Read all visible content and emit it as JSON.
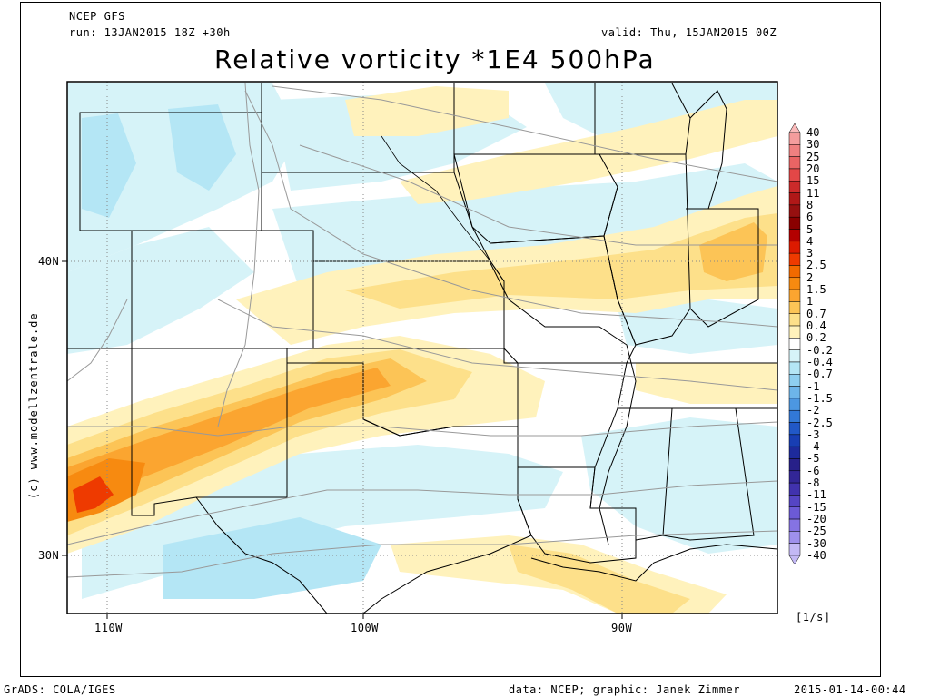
{
  "header": {
    "model": "NCEP GFS",
    "run": "run: 13JAN2015 18Z +30h",
    "valid": "valid: Thu, 15JAN2015 00Z",
    "title": "Relative vorticity *1E4 500hPa"
  },
  "axes": {
    "lat_labels": [
      "40N",
      "30N"
    ],
    "lon_labels": [
      "110W",
      "100W",
      "90W"
    ]
  },
  "colorbar": {
    "labels": [
      "40",
      "30",
      "25",
      "20",
      "15",
      "11",
      "8",
      "6",
      "5",
      "4",
      "3",
      "2.5",
      "2",
      "1.5",
      "1",
      "0.7",
      "0.4",
      "0.2",
      "-0.2",
      "-0.4",
      "-0.7",
      "-1",
      "-1.5",
      "-2",
      "-2.5",
      "-3",
      "-4",
      "-5",
      "-6",
      "-8",
      "-11",
      "-15",
      "-20",
      "-25",
      "-30",
      "-40"
    ],
    "colors": [
      "#fbbaba",
      "#f49d9d",
      "#ef8080",
      "#e96464",
      "#e34747",
      "#cc2a2a",
      "#b01818",
      "#961010",
      "#8a0000",
      "#b30000",
      "#dc1a00",
      "#ee3a00",
      "#f26a00",
      "#f78a10",
      "#fba530",
      "#fcc456",
      "#fde08a",
      "#fff2bc",
      "#ffffff",
      "#d6f3f8",
      "#b4e6f5",
      "#8ecff0",
      "#6db5ea",
      "#4c97e1",
      "#3278d6",
      "#2158c7",
      "#183eb3",
      "#1d2a9c",
      "#272089",
      "#322697",
      "#4132ae",
      "#5545c4",
      "#6c5ad6",
      "#8573e3",
      "#9f90ec",
      "#c3b8f5"
    ],
    "unit": "[1/s]"
  },
  "footer": {
    "left": "GrADS: COLA/IGES",
    "credit": "data: NCEP; graphic: Janek Zimmer",
    "timestamp": "2015-01-14-00:44"
  },
  "watermark": "(c) www.modellzentrale.de"
}
